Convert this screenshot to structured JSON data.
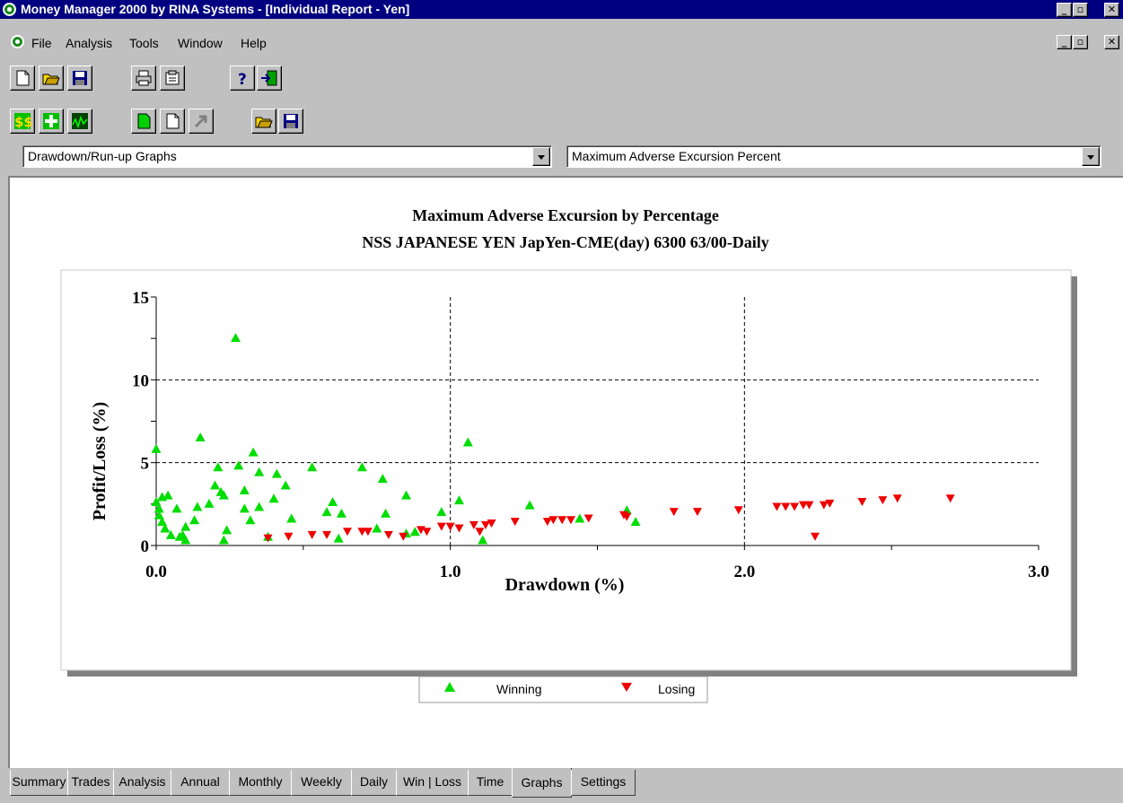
{
  "window": {
    "title": "Money Manager 2000 by RINA Systems - [Individual Report - Yen]",
    "controls": [
      "_",
      "▫",
      "✕"
    ]
  },
  "menu": {
    "items": [
      "File",
      "Analysis",
      "Tools",
      "Window",
      "Help"
    ]
  },
  "toolbar1": {
    "buttons": [
      "new-document-icon",
      "open-folder-icon",
      "save-disk-icon",
      "printer-icon",
      "properties-icon",
      "help-icon",
      "exit-icon"
    ]
  },
  "toolbar2": {
    "buttons": [
      "dollar-icon",
      "add-icon",
      "chart-icon",
      "green-page-icon",
      "blank-page-icon",
      "arrow-icon",
      "open-folder-icon",
      "save-disk-icon"
    ]
  },
  "dropdowns": {
    "graph_category": "Drawdown/Run-up Graphs",
    "graph_type": "Maximum Adverse Excursion Percent"
  },
  "chart_data": {
    "type": "scatter",
    "title": "Maximum Adverse Excursion by Percentage",
    "subtitle": "NSS JAPANESE YEN  JapYen-CME(day) 6300 63/00-Daily",
    "xlabel": "Drawdown (%)",
    "ylabel": "Profit/Loss (%)",
    "xlim": [
      0,
      3.0
    ],
    "ylim": [
      0,
      15
    ],
    "x_ticks": [
      "0.0",
      "1.0",
      "2.0",
      "3.0"
    ],
    "y_ticks": [
      "0",
      "5",
      "10",
      "15"
    ],
    "grid": "dashed",
    "legend_position": "bottom-center",
    "colors": {
      "winning": "#00dd00",
      "losing": "#ee0000"
    },
    "series": [
      {
        "name": "Winning",
        "marker": "triangle-up",
        "points": [
          [
            0.0,
            5.8
          ],
          [
            0.0,
            2.6
          ],
          [
            0.01,
            2.2
          ],
          [
            0.01,
            1.8
          ],
          [
            0.02,
            2.9
          ],
          [
            0.02,
            1.4
          ],
          [
            0.03,
            1.0
          ],
          [
            0.04,
            3.0
          ],
          [
            0.05,
            0.6
          ],
          [
            0.07,
            2.2
          ],
          [
            0.08,
            0.5
          ],
          [
            0.09,
            0.6
          ],
          [
            0.1,
            0.3
          ],
          [
            0.1,
            1.1
          ],
          [
            0.13,
            1.5
          ],
          [
            0.14,
            2.3
          ],
          [
            0.15,
            6.5
          ],
          [
            0.18,
            2.5
          ],
          [
            0.2,
            3.6
          ],
          [
            0.21,
            4.7
          ],
          [
            0.22,
            3.2
          ],
          [
            0.23,
            3.0
          ],
          [
            0.23,
            0.3
          ],
          [
            0.24,
            0.9
          ],
          [
            0.27,
            12.5
          ],
          [
            0.28,
            4.8
          ],
          [
            0.3,
            3.3
          ],
          [
            0.3,
            2.2
          ],
          [
            0.32,
            1.5
          ],
          [
            0.33,
            5.6
          ],
          [
            0.35,
            2.3
          ],
          [
            0.35,
            4.4
          ],
          [
            0.38,
            0.5
          ],
          [
            0.4,
            2.8
          ],
          [
            0.41,
            4.3
          ],
          [
            0.44,
            3.6
          ],
          [
            0.46,
            1.6
          ],
          [
            0.53,
            4.7
          ],
          [
            0.58,
            2.0
          ],
          [
            0.6,
            2.6
          ],
          [
            0.62,
            0.4
          ],
          [
            0.63,
            1.9
          ],
          [
            0.7,
            4.7
          ],
          [
            0.75,
            1.0
          ],
          [
            0.77,
            4.0
          ],
          [
            0.78,
            1.9
          ],
          [
            0.85,
            3.0
          ],
          [
            0.85,
            0.7
          ],
          [
            0.88,
            0.8
          ],
          [
            0.97,
            2.0
          ],
          [
            1.03,
            2.7
          ],
          [
            1.06,
            6.2
          ],
          [
            1.11,
            0.3
          ],
          [
            1.27,
            2.4
          ],
          [
            1.44,
            1.6
          ],
          [
            1.6,
            2.1
          ],
          [
            1.63,
            1.4
          ]
        ]
      },
      {
        "name": "Losing",
        "marker": "triangle-down",
        "points": [
          [
            0.38,
            0.4
          ],
          [
            0.45,
            0.5
          ],
          [
            0.53,
            0.6
          ],
          [
            0.58,
            0.6
          ],
          [
            0.65,
            0.8
          ],
          [
            0.7,
            0.8
          ],
          [
            0.72,
            0.8
          ],
          [
            0.79,
            0.6
          ],
          [
            0.84,
            0.5
          ],
          [
            0.9,
            0.9
          ],
          [
            0.92,
            0.8
          ],
          [
            0.97,
            1.1
          ],
          [
            1.0,
            1.1
          ],
          [
            1.03,
            1.0
          ],
          [
            1.08,
            1.2
          ],
          [
            1.1,
            0.8
          ],
          [
            1.12,
            1.2
          ],
          [
            1.14,
            1.3
          ],
          [
            1.22,
            1.4
          ],
          [
            1.33,
            1.4
          ],
          [
            1.35,
            1.5
          ],
          [
            1.38,
            1.5
          ],
          [
            1.41,
            1.5
          ],
          [
            1.47,
            1.6
          ],
          [
            1.59,
            1.8
          ],
          [
            1.6,
            1.7
          ],
          [
            1.76,
            2.0
          ],
          [
            1.84,
            2.0
          ],
          [
            1.98,
            2.1
          ],
          [
            2.11,
            2.3
          ],
          [
            2.14,
            2.3
          ],
          [
            2.17,
            2.3
          ],
          [
            2.2,
            2.4
          ],
          [
            2.22,
            2.4
          ],
          [
            2.24,
            0.5
          ],
          [
            2.27,
            2.4
          ],
          [
            2.29,
            2.5
          ],
          [
            2.4,
            2.6
          ],
          [
            2.47,
            2.7
          ],
          [
            2.52,
            2.8
          ],
          [
            2.7,
            2.8
          ]
        ]
      }
    ]
  },
  "legend": {
    "winning_label": "Winning",
    "losing_label": "Losing"
  },
  "tabs": [
    "Summary",
    "Trades",
    "Analysis",
    "Annual",
    "Monthly",
    "Weekly",
    "Daily",
    "Win | Loss",
    "Time",
    "Graphs",
    "Settings"
  ],
  "active_tab": "Graphs"
}
